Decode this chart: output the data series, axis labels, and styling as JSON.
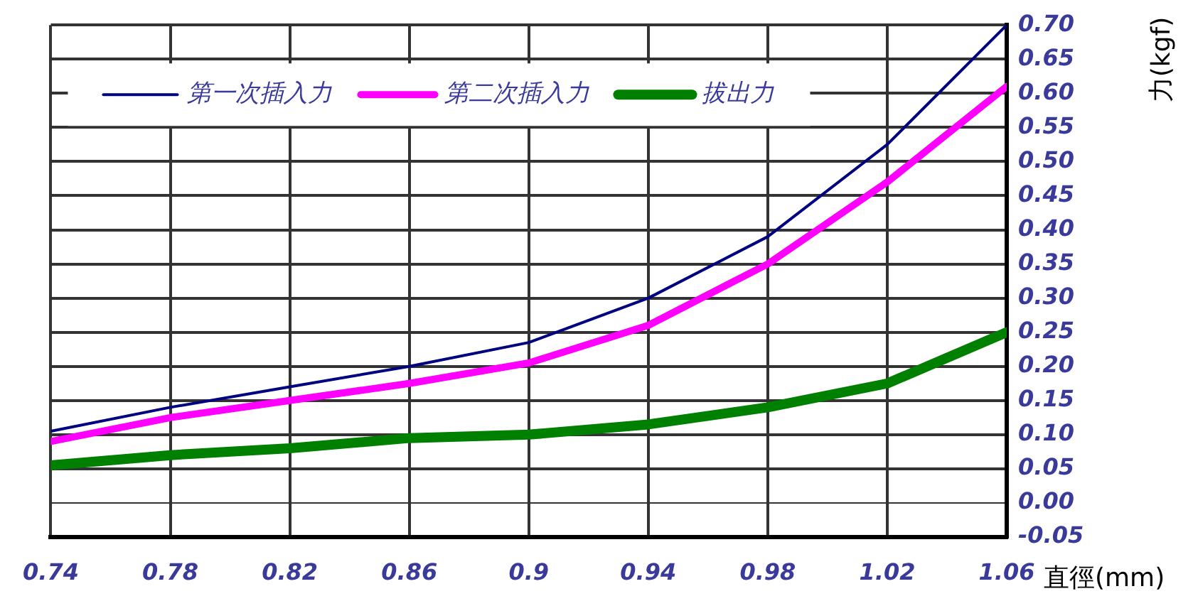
{
  "chart_data": {
    "type": "line",
    "xlabel": "直徑(mm)",
    "ylabel": "力(kgf)",
    "x": [
      0.74,
      0.78,
      0.82,
      0.86,
      0.9,
      0.94,
      0.98,
      1.02,
      1.06
    ],
    "series": [
      {
        "name": "第一次插入力",
        "color": "#000080",
        "values": [
          0.105,
          0.14,
          0.17,
          0.2,
          0.235,
          0.3,
          0.39,
          0.525,
          0.7
        ]
      },
      {
        "name": "第二次插入力",
        "color": "#ff00ff",
        "values": [
          0.09,
          0.125,
          0.15,
          0.175,
          0.205,
          0.26,
          0.35,
          0.47,
          0.61
        ]
      },
      {
        "name": "拔出力",
        "color": "#008000",
        "values": [
          0.055,
          0.07,
          0.08,
          0.095,
          0.1,
          0.115,
          0.14,
          0.175,
          0.25
        ]
      }
    ],
    "xlim": [
      0.74,
      1.06
    ],
    "xticks": [
      0.74,
      0.78,
      0.82,
      0.86,
      {
        "value": 0.9,
        "label": "0.9"
      },
      0.94,
      0.98,
      1.02,
      1.06
    ],
    "ylim": [
      -0.05,
      0.7
    ],
    "yticks": [
      {
        "value": -0.05,
        "label": "-0.05"
      },
      {
        "value": 0,
        "label": "0.00"
      },
      {
        "value": 0.05,
        "label": "0.05"
      },
      {
        "value": 0.1,
        "label": "0.10"
      },
      {
        "value": 0.15,
        "label": "0.15"
      },
      {
        "value": 0.2,
        "label": "0.20"
      },
      {
        "value": 0.25,
        "label": "0.25"
      },
      {
        "value": 0.3,
        "label": "0.30"
      },
      {
        "value": 0.35,
        "label": "0.35"
      },
      {
        "value": 0.4,
        "label": "0.40"
      },
      {
        "value": 0.45,
        "label": "0.45"
      },
      {
        "value": 0.5,
        "label": "0.50"
      },
      {
        "value": 0.55,
        "label": "0.55"
      },
      {
        "value": 0.6,
        "label": "0.60"
      },
      {
        "value": 0.65,
        "label": "0.65"
      },
      {
        "value": 0.7,
        "label": "0.70"
      }
    ],
    "grid": true,
    "legend": "top",
    "marker": "none",
    "line_style": "solid"
  }
}
